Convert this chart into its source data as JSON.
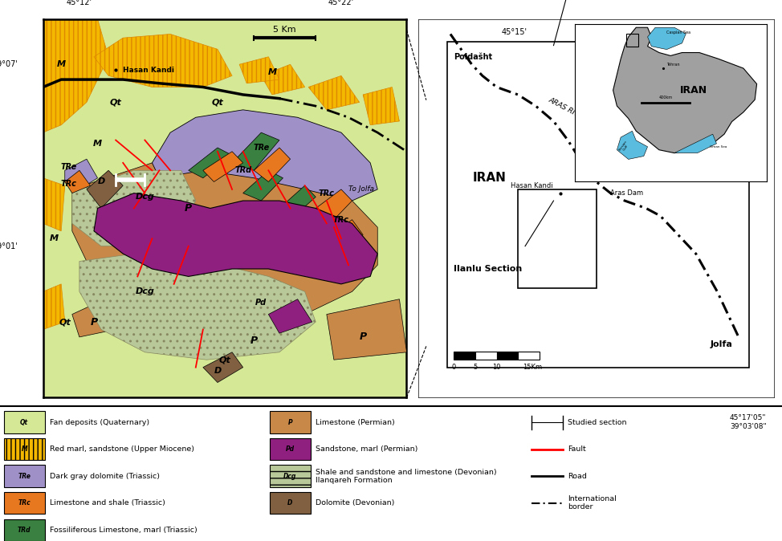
{
  "figure_size": [
    9.74,
    6.74
  ],
  "dpi": 100,
  "colors": {
    "Qt": "#d4e896",
    "M_fill": "#f5b800",
    "M_stripe": "#dd8800",
    "TRe": "#a090c8",
    "TRc": "#e87820",
    "TRd": "#3a8040",
    "P": "#c88848",
    "Pd": "#902080",
    "Dcg_fill": "#b8c898",
    "Dcg_hatch": "#8a9870",
    "D": "#806040",
    "fault": "#cc0000",
    "road": "#000000",
    "border": "#000000",
    "white": "#ffffff"
  },
  "legend_left": [
    {
      "sym": "Qt",
      "fc": "#d4e896",
      "hatch": null,
      "label": "Fan deposits (Quaternary)"
    },
    {
      "sym": "M",
      "fc": "#f5b800",
      "hatch": "|||",
      "label": "Red marl, sandstone (Upper Miocene)"
    },
    {
      "sym": "TRe",
      "fc": "#a090c8",
      "hatch": null,
      "label": "Dark gray dolomite (Triassic)"
    },
    {
      "sym": "TRc",
      "fc": "#e87820",
      "hatch": null,
      "label": "Limestone and shale (Triassic)"
    },
    {
      "sym": "TRd",
      "fc": "#3a8040",
      "hatch": null,
      "label": "Fossiliferous Limestone, marl (Triassic)"
    }
  ],
  "legend_mid": [
    {
      "sym": "P",
      "fc": "#c88848",
      "hatch": null,
      "label": "Limestone (Permian)"
    },
    {
      "sym": "Pd",
      "fc": "#902080",
      "hatch": null,
      "label": "Sandstone, marl (Permian)"
    },
    {
      "sym": "Dcg",
      "fc": "#b8c898",
      "hatch": "--",
      "label": "Shale and sandstone and limestone (Devonian)\nIlanqareh Formation"
    },
    {
      "sym": "D",
      "fc": "#806040",
      "hatch": null,
      "label": "Dolomite (Devonian)"
    }
  ]
}
